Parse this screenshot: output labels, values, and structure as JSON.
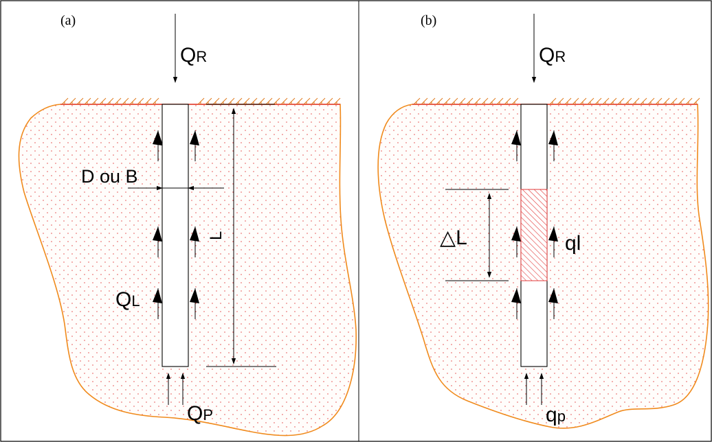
{
  "panels": [
    {
      "id": "a",
      "label": "(a)",
      "load_main": "Q",
      "load_main_sub": "R",
      "dim_width": "D ou B",
      "dim_length": "L",
      "shaft": "Q",
      "shaft_sub": "L",
      "tip": "Q",
      "tip_sub": "P"
    },
    {
      "id": "b",
      "label": "(b)",
      "load_main": "Q",
      "load_main_sub": "R",
      "segment": "△L",
      "unit_shaft": "ql",
      "tip": "q",
      "tip_sub": "p"
    }
  ],
  "colors": {
    "soil_outline": "#f08a1c",
    "soil_dots": "#e23a3a",
    "ground_hatch": "#e07a1a",
    "segment_hatch": "#e23a3a",
    "stroke": "#000000"
  }
}
